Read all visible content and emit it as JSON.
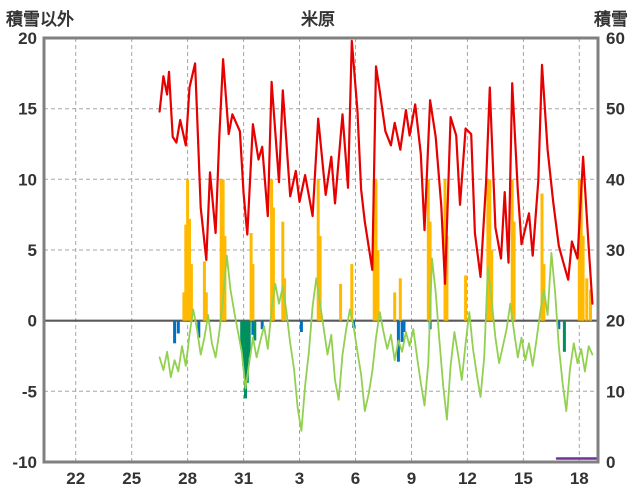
{
  "header": {
    "left_label": "積雪以外",
    "title": "米原",
    "right_label": "積雪"
  },
  "colors": {
    "temperature_line": "#e60000",
    "green_line": "#92d050",
    "sunshine_bars": "#ffb900",
    "blue_bars": "#0070c0",
    "teal_bars": "#008f5f",
    "snow_line": "#7030a0",
    "grid": "#a6a6a6",
    "zero_line": "#595959",
    "frame": "#808080"
  },
  "chart_data": {
    "type": "mixed",
    "title": "米原",
    "left_axis": {
      "label": "積雪以外",
      "min": -10,
      "max": 20,
      "ticks": [
        20,
        15,
        10,
        5,
        0,
        -5,
        -10
      ]
    },
    "right_axis": {
      "label": "積雪",
      "min": 0,
      "max": 60,
      "ticks": [
        60,
        50,
        40,
        30,
        20,
        10,
        0
      ]
    },
    "x_axis": {
      "min": 20.3,
      "max": 50.0,
      "tick_values": [
        22,
        25,
        28,
        31,
        34,
        37,
        40,
        43,
        46,
        49
      ],
      "tick_labels": [
        "22",
        "25",
        "28",
        "31",
        "3",
        "6",
        "9",
        "12",
        "15",
        "18"
      ]
    },
    "grid": "dashed",
    "series": [
      {
        "name": "yellow-bars",
        "type": "bar",
        "axis": "left",
        "color": "#ffb900",
        "points": [
          [
            27.8,
            2.0
          ],
          [
            27.9,
            6.8
          ],
          [
            28.0,
            10
          ],
          [
            28.1,
            7.2
          ],
          [
            28.2,
            4.0
          ],
          [
            28.9,
            4.2
          ],
          [
            29.0,
            2.0
          ],
          [
            29.8,
            10
          ],
          [
            29.9,
            10
          ],
          [
            30.0,
            6.0
          ],
          [
            31.4,
            6.2
          ],
          [
            31.5,
            4.0
          ],
          [
            32.5,
            10
          ],
          [
            32.6,
            8.0
          ],
          [
            33.1,
            7.0
          ],
          [
            33.2,
            3.0
          ],
          [
            35.0,
            10
          ],
          [
            35.1,
            6.0
          ],
          [
            36.2,
            2.6
          ],
          [
            36.8,
            4.0
          ],
          [
            38.0,
            10
          ],
          [
            38.1,
            10
          ],
          [
            38.2,
            5.0
          ],
          [
            39.1,
            2.0
          ],
          [
            39.4,
            3.0
          ],
          [
            40.9,
            10
          ],
          [
            41.0,
            7.0
          ],
          [
            41.8,
            10
          ],
          [
            41.9,
            6.0
          ],
          [
            42.9,
            3.2
          ],
          [
            44.1,
            10
          ],
          [
            44.2,
            10
          ],
          [
            44.3,
            5.0
          ],
          [
            45.4,
            10
          ],
          [
            45.5,
            7.0
          ],
          [
            47.0,
            9.0
          ],
          [
            47.1,
            4.0
          ],
          [
            49.0,
            10
          ],
          [
            49.1,
            10
          ],
          [
            49.2,
            6.0
          ],
          [
            49.4,
            3.0
          ],
          [
            49.6,
            2.2
          ]
        ]
      },
      {
        "name": "blue-bars",
        "type": "bar",
        "axis": "left",
        "color": "#0070c0",
        "points": [
          [
            27.3,
            -1.6
          ],
          [
            27.5,
            -0.9
          ],
          [
            28.6,
            -1.2
          ],
          [
            31.5,
            -1.0
          ],
          [
            32.0,
            -0.6
          ],
          [
            34.1,
            -0.8
          ],
          [
            36.9,
            -0.5
          ],
          [
            39.3,
            -2.9
          ],
          [
            39.5,
            -1.5
          ],
          [
            39.6,
            -0.8
          ],
          [
            41.0,
            -0.6
          ],
          [
            47.9,
            -0.6
          ]
        ]
      },
      {
        "name": "teal-bars",
        "type": "bar",
        "axis": "left",
        "color": "#008f5f",
        "points": [
          [
            30.9,
            -2.0
          ],
          [
            31.0,
            -3.2
          ],
          [
            31.1,
            -5.5
          ],
          [
            31.2,
            -4.4
          ],
          [
            31.3,
            -2.6
          ],
          [
            31.6,
            -1.4
          ],
          [
            48.2,
            -2.2
          ]
        ]
      },
      {
        "name": "green-line",
        "type": "line",
        "axis": "left",
        "color": "#92d050",
        "width": 1.8,
        "points": [
          [
            26.5,
            -2.6
          ],
          [
            26.7,
            -3.5
          ],
          [
            26.9,
            -2.2
          ],
          [
            27.1,
            -4.0
          ],
          [
            27.3,
            -2.8
          ],
          [
            27.5,
            -3.6
          ],
          [
            27.7,
            -1.8
          ],
          [
            27.9,
            -3.2
          ],
          [
            28.1,
            -1.0
          ],
          [
            28.3,
            0.8
          ],
          [
            28.5,
            -0.6
          ],
          [
            28.7,
            -2.4
          ],
          [
            28.9,
            -1.2
          ],
          [
            29.1,
            0.4
          ],
          [
            29.3,
            -1.6
          ],
          [
            29.5,
            -2.6
          ],
          [
            29.7,
            -0.8
          ],
          [
            29.9,
            1.6
          ],
          [
            30.1,
            4.6
          ],
          [
            30.3,
            2.2
          ],
          [
            30.5,
            0.6
          ],
          [
            30.7,
            -0.8
          ],
          [
            30.9,
            -2.2
          ],
          [
            31.1,
            -4.8
          ],
          [
            31.3,
            -3.0
          ],
          [
            31.5,
            -1.2
          ],
          [
            31.7,
            -2.6
          ],
          [
            31.9,
            -1.4
          ],
          [
            32.1,
            -0.4
          ],
          [
            32.3,
            -2.0
          ],
          [
            32.5,
            0.8
          ],
          [
            32.7,
            2.6
          ],
          [
            32.9,
            1.2
          ],
          [
            33.1,
            2.4
          ],
          [
            33.3,
            0.6
          ],
          [
            33.5,
            -1.6
          ],
          [
            33.7,
            -3.4
          ],
          [
            33.9,
            -6.2
          ],
          [
            34.1,
            -7.8
          ],
          [
            34.3,
            -4.6
          ],
          [
            34.5,
            -2.2
          ],
          [
            34.7,
            1.0
          ],
          [
            34.9,
            3.0
          ],
          [
            35.1,
            1.2
          ],
          [
            35.3,
            -0.6
          ],
          [
            35.5,
            -2.4
          ],
          [
            35.7,
            -1.0
          ],
          [
            35.9,
            -4.2
          ],
          [
            36.1,
            -5.6
          ],
          [
            36.3,
            -2.4
          ],
          [
            36.5,
            -0.6
          ],
          [
            36.7,
            0.8
          ],
          [
            36.9,
            -0.4
          ],
          [
            37.1,
            -2.2
          ],
          [
            37.3,
            -3.8
          ],
          [
            37.5,
            -6.4
          ],
          [
            37.7,
            -5.2
          ],
          [
            37.9,
            -3.6
          ],
          [
            38.1,
            -1.2
          ],
          [
            38.3,
            0.6
          ],
          [
            38.5,
            -0.8
          ],
          [
            38.7,
            -2.0
          ],
          [
            38.9,
            -1.0
          ],
          [
            39.1,
            -2.8
          ],
          [
            39.3,
            -1.4
          ],
          [
            39.5,
            -2.2
          ],
          [
            39.7,
            -0.8
          ],
          [
            39.9,
            -1.8
          ],
          [
            40.1,
            -0.6
          ],
          [
            40.3,
            -2.6
          ],
          [
            40.5,
            -4.4
          ],
          [
            40.7,
            -6.0
          ],
          [
            40.9,
            -3.0
          ],
          [
            41.1,
            4.4
          ],
          [
            41.3,
            2.0
          ],
          [
            41.5,
            -1.4
          ],
          [
            41.7,
            -4.6
          ],
          [
            41.9,
            -7.0
          ],
          [
            42.1,
            -3.2
          ],
          [
            42.3,
            -0.8
          ],
          [
            42.5,
            -2.4
          ],
          [
            42.7,
            -4.2
          ],
          [
            42.9,
            -1.6
          ],
          [
            43.1,
            0.6
          ],
          [
            43.3,
            -2.0
          ],
          [
            43.5,
            -3.8
          ],
          [
            43.7,
            -5.4
          ],
          [
            43.9,
            -2.6
          ],
          [
            44.1,
            3.8
          ],
          [
            44.3,
            1.4
          ],
          [
            44.5,
            -1.2
          ],
          [
            44.7,
            -3.0
          ],
          [
            44.9,
            -1.8
          ],
          [
            45.1,
            -0.6
          ],
          [
            45.3,
            1.2
          ],
          [
            45.5,
            -0.8
          ],
          [
            45.7,
            -2.6
          ],
          [
            45.9,
            -1.2
          ],
          [
            46.1,
            -2.8
          ],
          [
            46.3,
            -1.6
          ],
          [
            46.5,
            -3.2
          ],
          [
            46.7,
            -1.4
          ],
          [
            46.9,
            0.6
          ],
          [
            47.1,
            2.2
          ],
          [
            47.3,
            0.4
          ],
          [
            47.5,
            4.8
          ],
          [
            47.7,
            2.0
          ],
          [
            47.9,
            -1.8
          ],
          [
            48.1,
            -4.4
          ],
          [
            48.3,
            -6.4
          ],
          [
            48.5,
            -3.4
          ],
          [
            48.7,
            -1.6
          ],
          [
            48.9,
            -3.0
          ],
          [
            49.1,
            -2.0
          ],
          [
            49.3,
            -3.6
          ],
          [
            49.5,
            -1.8
          ],
          [
            49.7,
            -2.4
          ]
        ]
      },
      {
        "name": "red-line",
        "type": "line",
        "axis": "left",
        "color": "#e60000",
        "width": 2.2,
        "points": [
          [
            26.5,
            14.8
          ],
          [
            26.7,
            17.3
          ],
          [
            26.9,
            16.0
          ],
          [
            27.0,
            17.6
          ],
          [
            27.2,
            13.0
          ],
          [
            27.4,
            12.6
          ],
          [
            27.6,
            14.2
          ],
          [
            27.9,
            12.4
          ],
          [
            28.1,
            16.5
          ],
          [
            28.4,
            18.2
          ],
          [
            28.7,
            8.0
          ],
          [
            29.0,
            4.3
          ],
          [
            29.2,
            10.5
          ],
          [
            29.5,
            6.2
          ],
          [
            29.7,
            13.0
          ],
          [
            29.9,
            18.5
          ],
          [
            30.2,
            13.2
          ],
          [
            30.4,
            14.6
          ],
          [
            30.8,
            13.4
          ],
          [
            31.0,
            9.0
          ],
          [
            31.2,
            6.1
          ],
          [
            31.5,
            13.9
          ],
          [
            31.8,
            11.4
          ],
          [
            32.0,
            12.3
          ],
          [
            32.3,
            7.4
          ],
          [
            32.5,
            16.9
          ],
          [
            32.9,
            9.8
          ],
          [
            33.1,
            16.3
          ],
          [
            33.5,
            8.8
          ],
          [
            33.8,
            10.6
          ],
          [
            34.0,
            8.4
          ],
          [
            34.3,
            10.3
          ],
          [
            34.7,
            7.4
          ],
          [
            35.0,
            14.3
          ],
          [
            35.4,
            8.9
          ],
          [
            35.7,
            11.6
          ],
          [
            35.9,
            8.3
          ],
          [
            36.3,
            14.6
          ],
          [
            36.6,
            9.4
          ],
          [
            36.8,
            19.8
          ],
          [
            37.1,
            14.9
          ],
          [
            37.3,
            9.3
          ],
          [
            37.5,
            7.0
          ],
          [
            37.9,
            3.6
          ],
          [
            38.1,
            18.0
          ],
          [
            38.3,
            16.2
          ],
          [
            38.6,
            13.4
          ],
          [
            38.9,
            12.4
          ],
          [
            39.1,
            14.0
          ],
          [
            39.4,
            12.1
          ],
          [
            39.7,
            14.9
          ],
          [
            39.9,
            13.1
          ],
          [
            40.2,
            15.3
          ],
          [
            40.5,
            11.8
          ],
          [
            40.7,
            6.4
          ],
          [
            41.0,
            15.6
          ],
          [
            41.3,
            13.0
          ],
          [
            41.6,
            8.1
          ],
          [
            41.8,
            2.6
          ],
          [
            42.1,
            14.4
          ],
          [
            42.4,
            13.1
          ],
          [
            42.6,
            8.2
          ],
          [
            42.9,
            13.6
          ],
          [
            43.2,
            13.2
          ],
          [
            43.4,
            6.2
          ],
          [
            43.7,
            3.1
          ],
          [
            44.0,
            9.8
          ],
          [
            44.2,
            16.5
          ],
          [
            44.5,
            6.6
          ],
          [
            44.8,
            4.4
          ],
          [
            45.0,
            9.1
          ],
          [
            45.2,
            4.1
          ],
          [
            45.4,
            16.8
          ],
          [
            45.7,
            9.2
          ],
          [
            45.9,
            5.4
          ],
          [
            46.3,
            7.6
          ],
          [
            46.5,
            4.6
          ],
          [
            46.8,
            9.9
          ],
          [
            47.0,
            18.1
          ],
          [
            47.3,
            12.1
          ],
          [
            47.6,
            8.4
          ],
          [
            47.9,
            5.3
          ],
          [
            48.1,
            4.3
          ],
          [
            48.4,
            2.9
          ],
          [
            48.6,
            5.6
          ],
          [
            48.9,
            4.4
          ],
          [
            49.2,
            11.6
          ],
          [
            49.5,
            5.2
          ],
          [
            49.7,
            1.2
          ]
        ]
      },
      {
        "name": "purple-snow-line",
        "type": "line",
        "axis": "right",
        "color": "#7030a0",
        "width": 2.5,
        "points": [
          [
            47.8,
            0.5
          ],
          [
            49.9,
            0.5
          ]
        ]
      }
    ]
  }
}
